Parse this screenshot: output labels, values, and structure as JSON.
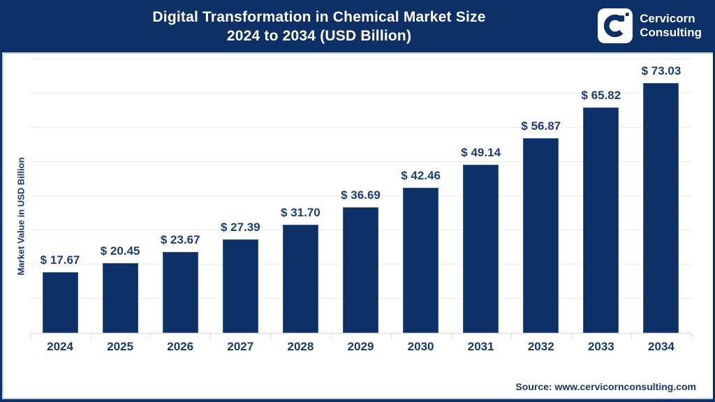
{
  "header": {
    "title_line1": "Digital Transformation in Chemical Market Size",
    "title_line2": "2024 to 2034 (USD Billion)",
    "brand": {
      "name_line1": "Cervicorn",
      "name_line2": "Consulting"
    }
  },
  "chart_data": {
    "type": "bar",
    "title": "Digital Transformation in Chemical Market Size 2024 to 2034 (USD Billion)",
    "ylabel": "Market Value in USD Billion",
    "xlabel": "",
    "categories": [
      "2024",
      "2025",
      "2026",
      "2027",
      "2028",
      "2029",
      "2030",
      "2031",
      "2032",
      "2033",
      "2034"
    ],
    "values": [
      17.67,
      20.45,
      23.67,
      27.39,
      31.7,
      36.69,
      42.46,
      49.14,
      56.87,
      65.82,
      73.03
    ],
    "labels": [
      "$ 17.67",
      "$ 20.45",
      "$ 23.67",
      "$ 27.39",
      "$ 31.70",
      "$ 36.69",
      "$ 42.46",
      "$ 49.14",
      "$ 56.87",
      "$ 65.82",
      "$ 73.03"
    ],
    "ylim": [
      0,
      80
    ],
    "gridline_step": 10,
    "grid": true,
    "legend": false,
    "bar_color": "#0d3166",
    "value_label_color": "#1b3e73"
  },
  "footer": {
    "source": "Source: www.cervicornconsulting.com"
  },
  "colors": {
    "navy": "#0d3166",
    "header_bg": "#0d3166",
    "grid": "#ececec",
    "axis_line": "#d9d9d9",
    "accent_light": "#c3cfe2",
    "background": "#ffffff"
  }
}
